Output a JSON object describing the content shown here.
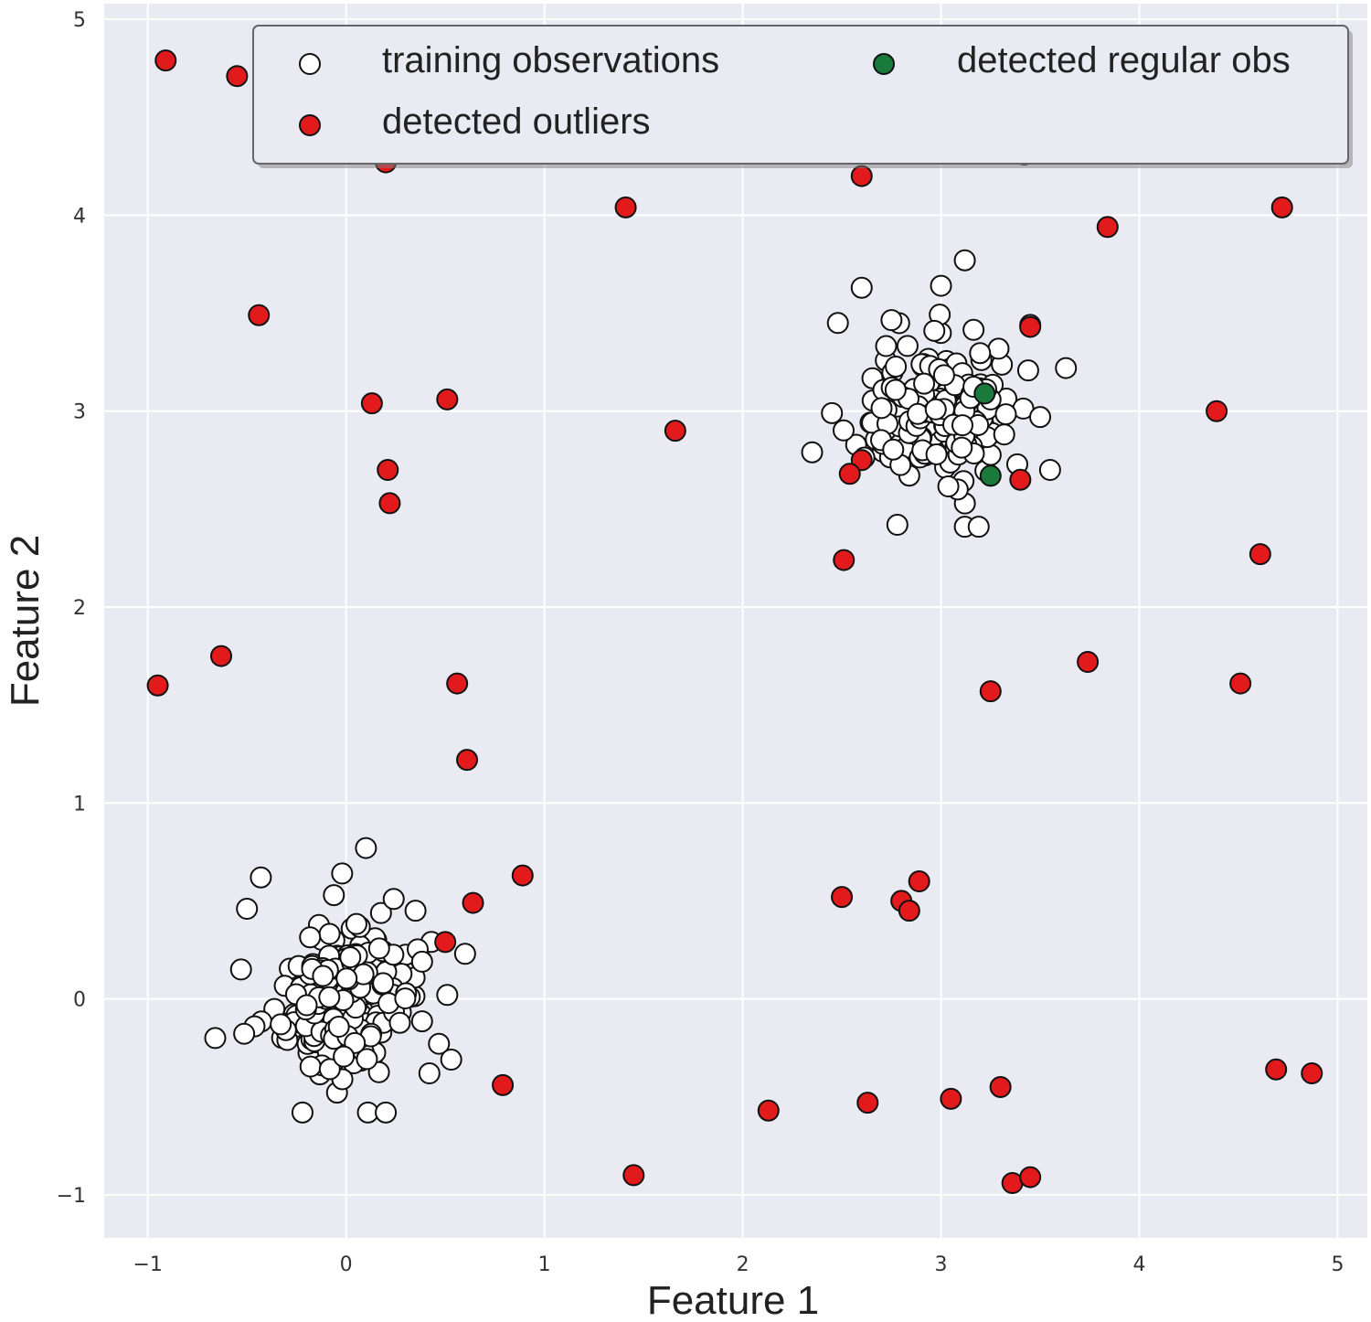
{
  "chart_data": {
    "type": "scatter",
    "title": "",
    "xlabel": "Feature 1",
    "ylabel": "Feature 2",
    "xlim": [
      -1.22,
      5.15
    ],
    "ylim": [
      -1.22,
      5.08
    ],
    "xticks": [
      -1,
      0,
      1,
      2,
      3,
      4,
      5
    ],
    "yticks": [
      -1,
      0,
      1,
      2,
      3,
      4,
      5
    ],
    "grid": true,
    "legend_position": "top",
    "colors": {
      "background": "#eaeaf2",
      "grid": "#ffffff",
      "training": "#ffffff",
      "outliers": "#e31a1c",
      "regular": "#1a7a3c",
      "edge": "#111111"
    },
    "series": [
      {
        "name": "training observations",
        "color": "#ffffff",
        "clusters": [
          {
            "center": [
              0.0,
              0.0
            ],
            "spread": 0.17,
            "count": 230
          },
          {
            "center": [
              3.0,
              3.0
            ],
            "spread": 0.17,
            "count": 230
          }
        ],
        "points": [
          [
            0.1,
            0.77
          ],
          [
            -0.43,
            0.62
          ],
          [
            -0.02,
            0.64
          ],
          [
            -0.5,
            0.46
          ],
          [
            0.24,
            0.51
          ],
          [
            0.35,
            0.45
          ],
          [
            -0.66,
            -0.2
          ],
          [
            -0.22,
            -0.58
          ],
          [
            0.11,
            -0.58
          ],
          [
            0.2,
            -0.58
          ],
          [
            0.6,
            0.23
          ],
          [
            0.53,
            -0.31
          ],
          [
            0.42,
            -0.38
          ],
          [
            -0.53,
            0.15
          ],
          [
            0.51,
            0.02
          ],
          [
            3.12,
            3.77
          ],
          [
            3.0,
            3.64
          ],
          [
            2.6,
            3.63
          ],
          [
            2.48,
            3.45
          ],
          [
            3.63,
            3.22
          ],
          [
            2.35,
            2.79
          ],
          [
            3.55,
            2.7
          ],
          [
            2.78,
            2.42
          ],
          [
            3.12,
            2.41
          ],
          [
            3.19,
            2.41
          ],
          [
            3.45,
            3.44
          ],
          [
            2.45,
            2.99
          ],
          [
            3.5,
            2.97
          ]
        ]
      },
      {
        "name": "detected outliers",
        "color": "#e31a1c",
        "points": [
          [
            -0.91,
            4.79
          ],
          [
            -0.55,
            4.71
          ],
          [
            0.2,
            4.27
          ],
          [
            2.6,
            4.2
          ],
          [
            3.42,
            4.31
          ],
          [
            1.41,
            4.04
          ],
          [
            4.72,
            4.04
          ],
          [
            3.84,
            3.94
          ],
          [
            -0.44,
            3.49
          ],
          [
            3.45,
            3.43
          ],
          [
            0.13,
            3.04
          ],
          [
            0.51,
            3.06
          ],
          [
            4.39,
            3.0
          ],
          [
            1.66,
            2.9
          ],
          [
            0.21,
            2.7
          ],
          [
            2.6,
            2.75
          ],
          [
            2.54,
            2.68
          ],
          [
            3.4,
            2.65
          ],
          [
            0.22,
            2.53
          ],
          [
            2.51,
            2.24
          ],
          [
            4.61,
            2.27
          ],
          [
            -0.63,
            1.75
          ],
          [
            3.74,
            1.72
          ],
          [
            -0.95,
            1.6
          ],
          [
            0.56,
            1.61
          ],
          [
            4.51,
            1.61
          ],
          [
            3.25,
            1.57
          ],
          [
            0.61,
            1.22
          ],
          [
            0.89,
            0.63
          ],
          [
            2.5,
            0.52
          ],
          [
            2.89,
            0.6
          ],
          [
            2.8,
            0.5
          ],
          [
            2.84,
            0.45
          ],
          [
            0.64,
            0.49
          ],
          [
            0.5,
            0.29
          ],
          [
            0.79,
            -0.44
          ],
          [
            2.13,
            -0.57
          ],
          [
            2.63,
            -0.53
          ],
          [
            3.05,
            -0.51
          ],
          [
            3.3,
            -0.45
          ],
          [
            4.69,
            -0.36
          ],
          [
            4.87,
            -0.38
          ],
          [
            1.45,
            -0.9
          ],
          [
            3.36,
            -0.94
          ],
          [
            3.45,
            -0.91
          ]
        ]
      },
      {
        "name": "detected regular obs",
        "color": "#1a7a3c",
        "points": [
          [
            3.22,
            3.09
          ],
          [
            3.25,
            2.67
          ]
        ]
      }
    ]
  }
}
